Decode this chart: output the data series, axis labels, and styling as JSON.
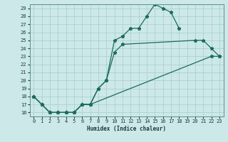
{
  "xlabel": "Humidex (Indice chaleur)",
  "xlim": [
    -0.5,
    23.5
  ],
  "ylim": [
    15.5,
    29.5
  ],
  "xticks": [
    0,
    1,
    2,
    3,
    4,
    5,
    6,
    7,
    8,
    9,
    10,
    11,
    12,
    13,
    14,
    15,
    16,
    17,
    18,
    19,
    20,
    21,
    22,
    23
  ],
  "yticks": [
    16,
    17,
    18,
    19,
    20,
    21,
    22,
    23,
    24,
    25,
    26,
    27,
    28,
    29
  ],
  "line_color": "#1a6b5a",
  "bg_color": "#cce8e8",
  "grid_color": "#a8cccc",
  "line1_x": [
    0,
    1,
    2,
    3,
    4,
    5,
    6,
    7,
    8,
    9,
    10,
    11,
    12,
    13,
    14,
    15,
    16,
    17,
    18
  ],
  "line1_y": [
    18,
    17,
    16,
    16,
    16,
    16,
    17,
    17,
    19,
    20,
    25,
    25.5,
    26.5,
    26.5,
    28,
    29.5,
    29,
    28.5,
    26.5
  ],
  "line2_x": [
    0,
    1,
    2,
    3,
    4,
    5,
    6,
    7,
    8,
    9,
    10,
    11,
    20,
    21,
    22,
    23
  ],
  "line2_y": [
    18,
    17,
    16,
    16,
    16,
    16,
    17,
    17,
    19,
    20,
    23.5,
    24.5,
    25,
    25,
    24,
    23
  ],
  "line3_x": [
    0,
    1,
    2,
    3,
    4,
    5,
    6,
    7,
    22,
    23
  ],
  "line3_y": [
    18,
    17,
    16,
    16,
    16,
    16,
    17,
    17,
    23,
    23
  ]
}
